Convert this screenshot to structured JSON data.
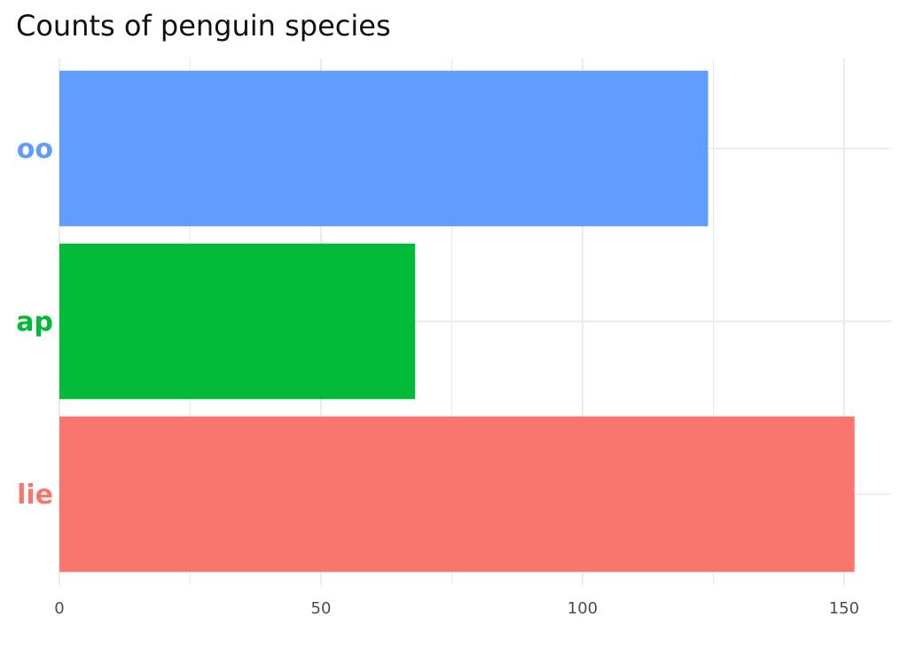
{
  "chart_data": {
    "type": "bar",
    "orientation": "horizontal",
    "title": "Counts of penguin species",
    "categories": [
      "oo",
      "ap",
      "lie"
    ],
    "values": [
      124,
      68,
      152
    ],
    "colors": [
      "#619CFF",
      "#00BA38",
      "#F8766D"
    ],
    "xlim": [
      0,
      159
    ],
    "xticks": [
      0,
      50,
      100,
      150
    ],
    "xminorticks": [
      25,
      75,
      125
    ],
    "grid": true
  }
}
